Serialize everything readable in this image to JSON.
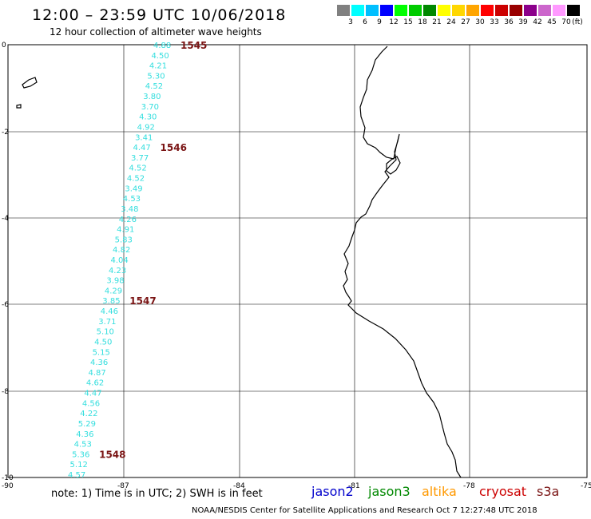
{
  "title": "12:00 – 23:59 UTC 10/06/2018",
  "subtitle": "12 hour collection of altimeter wave heights",
  "legend": {
    "colors": [
      "#808080",
      "#00ffff",
      "#00bfff",
      "#0000ff",
      "#00ff00",
      "#00cc00",
      "#008800",
      "#ffff00",
      "#ffd700",
      "#ffa500",
      "#ff0000",
      "#cc0000",
      "#990000",
      "#8b008b",
      "#cc66cc",
      "#ff99ff",
      "#000000"
    ],
    "labels": [
      "3",
      "6",
      "9",
      "12",
      "15",
      "18",
      "21",
      "24",
      "27",
      "30",
      "33",
      "36",
      "39",
      "42",
      "45",
      "70"
    ],
    "unit": "(ft)"
  },
  "map": {
    "x_ticks": [
      "-90",
      "-87",
      "-84",
      "-81",
      "-78",
      "-75"
    ],
    "y_ticks": [
      "0",
      "-2",
      "-4",
      "-6",
      "-8",
      "-10"
    ]
  },
  "wave_heights": [
    "4.88",
    "4.50",
    "4.21",
    "5.30",
    "4.52",
    "3.80",
    "3.70",
    "4.30",
    "4.92",
    "3.41",
    "4.47",
    "3.77",
    "4.52",
    "4.52",
    "3.49",
    "4.53",
    "3.48",
    "4.26",
    "4.91",
    "5.83",
    "4.82",
    "4.04",
    "4.23",
    "3.98",
    "4.29",
    "3.85",
    "4.46",
    "3.71",
    "5.10",
    "4.50",
    "5.15",
    "4.36",
    "4.87",
    "4.62",
    "4.47",
    "4.56",
    "4.22",
    "5.29",
    "4.36",
    "4.53",
    "5.36",
    "5.12",
    "4.57"
  ],
  "pass_times": [
    {
      "label": "1545",
      "index": 0
    },
    {
      "label": "1546",
      "index": 10
    },
    {
      "label": "1547",
      "index": 25
    },
    {
      "label": "1548",
      "index": 40
    }
  ],
  "note": "note: 1) Time is in UTC; 2) SWH is in feet",
  "satellites": [
    {
      "name": "jason2",
      "color": "#0000cc"
    },
    {
      "name": "jason3",
      "color": "#008800"
    },
    {
      "name": "altika",
      "color": "#ff9900"
    },
    {
      "name": "cryosat",
      "color": "#cc0000"
    },
    {
      "name": "s3a",
      "color": "#7a1414"
    }
  ],
  "credit": "NOAA/NESDIS Center for Satellite Applications and Research   Oct  7 12:27:48 UTC 2018"
}
